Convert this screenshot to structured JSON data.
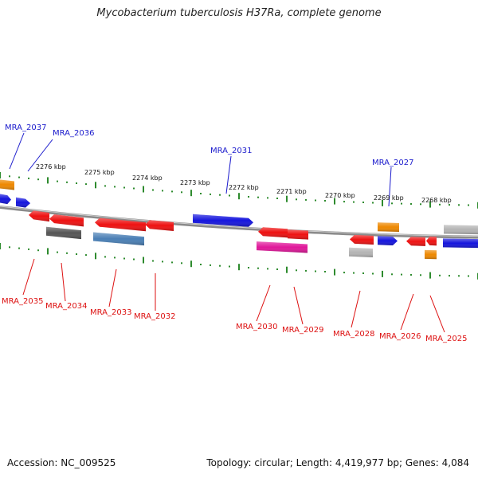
{
  "title": "Mycobacterium tuberculosis H37Ra, complete genome",
  "footer": {
    "accession": "Accession: NC_009525",
    "info": "Topology: circular; Length: 4,419,977 bp; Genes: 4,084"
  },
  "colors": {
    "backbone": "#8a8a8a",
    "tick_minor": "#2e8b2e",
    "forward_label": "#1a1acc",
    "reverse_label": "#dd1111",
    "gene_red": "#ee1111",
    "gene_blue": "#1515dd",
    "gene_orange": "#ee8800",
    "gene_gray": "#b4b4b4",
    "gene_dark": "#555555",
    "gene_steel": "#4a7fb5",
    "gene_magenta": "#e0179a"
  },
  "scale_labels": [
    "2276 kbp",
    "2275 kbp",
    "2274 kbp",
    "2273 kbp",
    "2272 kbp",
    "2271 kbp",
    "2270 kbp",
    "2269 kbp",
    "2268 kbp"
  ],
  "gene_labels": {
    "forward": [
      "MRA_2037",
      "MRA_2036",
      "MRA_2031",
      "MRA_2027"
    ],
    "reverse": [
      "MRA_2035",
      "MRA_2034",
      "MRA_2033",
      "MRA_2032",
      "MRA_2030",
      "MRA_2029",
      "MRA_2028",
      "MRA_2026",
      "MRA_2025"
    ]
  }
}
